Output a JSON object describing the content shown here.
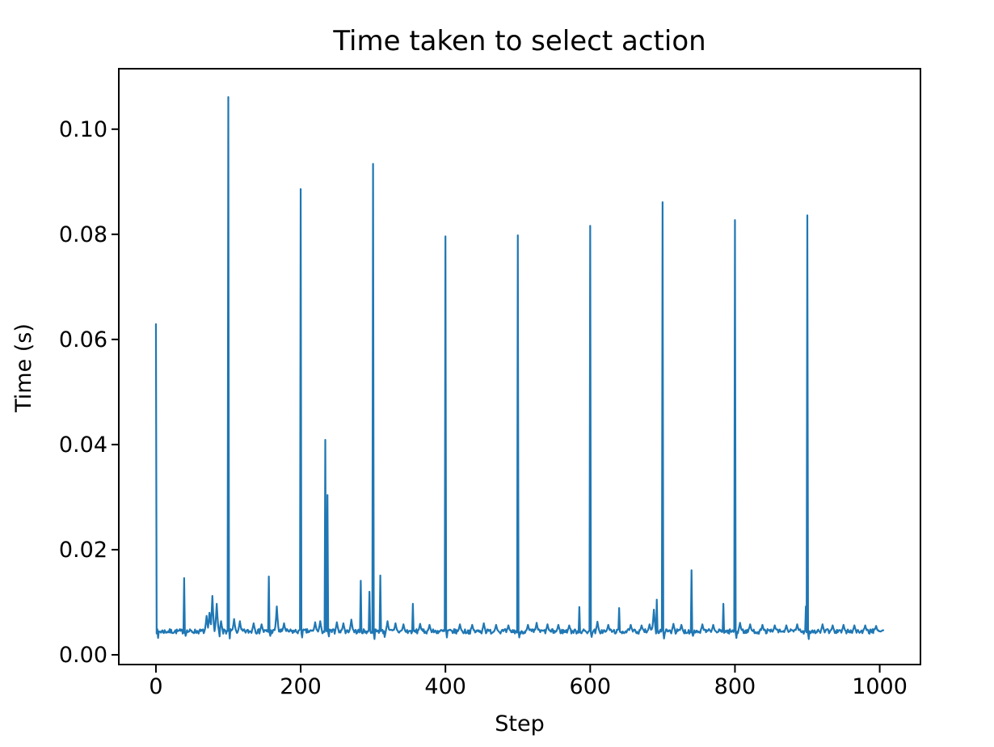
{
  "page": {
    "background": "#ffffff"
  },
  "chart_data": {
    "type": "line",
    "title": "Time taken to select action",
    "xlabel": "Step",
    "ylabel": "Time (s)",
    "series_color": "#1f77b4",
    "axis_color": "#000000",
    "grid": false,
    "legend": null,
    "x_ticks": [
      0,
      200,
      400,
      600,
      800,
      1000
    ],
    "y_ticks": [
      {
        "value": 0.0,
        "label": "0.00"
      },
      {
        "value": 0.02,
        "label": "0.02"
      },
      {
        "value": 0.04,
        "label": "0.04"
      },
      {
        "value": 0.06,
        "label": "0.06"
      },
      {
        "value": 0.08,
        "label": "0.08"
      },
      {
        "value": 0.1,
        "label": "0.10"
      }
    ],
    "xlim": [
      -51.3,
      1056.3
    ],
    "ylim": [
      -0.00185,
      0.1115
    ],
    "n_points": 1006,
    "baseline": {
      "mean": 0.00445,
      "noise": 0.0009,
      "seed": 7
    },
    "spikes": [
      [
        0,
        0.0629
      ],
      [
        39,
        0.0146
      ],
      [
        100,
        0.1061
      ],
      [
        156,
        0.0149
      ],
      [
        200,
        0.0886
      ],
      [
        234,
        0.0409
      ],
      [
        237,
        0.0304
      ],
      [
        283,
        0.0141
      ],
      [
        295,
        0.012
      ],
      [
        300,
        0.0934
      ],
      [
        310,
        0.0151
      ],
      [
        355,
        0.0097
      ],
      [
        400,
        0.0796
      ],
      [
        500,
        0.0798
      ],
      [
        585,
        0.0091
      ],
      [
        600,
        0.0816
      ],
      [
        640,
        0.0089
      ],
      [
        692,
        0.0105
      ],
      [
        700,
        0.0861
      ],
      [
        740,
        0.0161
      ],
      [
        784,
        0.0097
      ],
      [
        800,
        0.0827
      ],
      [
        898,
        0.0092
      ],
      [
        900,
        0.0836
      ]
    ],
    "small_bumps": [
      [
        70,
        0.0074
      ],
      [
        74,
        0.008
      ],
      [
        78,
        0.0112
      ],
      [
        84,
        0.0097
      ],
      [
        90,
        0.0064
      ],
      [
        108,
        0.0068
      ],
      [
        116,
        0.0064
      ],
      [
        135,
        0.006
      ],
      [
        146,
        0.0058
      ],
      [
        167,
        0.0092
      ],
      [
        177,
        0.006
      ],
      [
        220,
        0.0062
      ],
      [
        227,
        0.0064
      ],
      [
        250,
        0.0062
      ],
      [
        259,
        0.006
      ],
      [
        270,
        0.0067
      ],
      [
        320,
        0.0064
      ],
      [
        331,
        0.006
      ],
      [
        342,
        0.0058
      ],
      [
        365,
        0.0059
      ],
      [
        378,
        0.0057
      ],
      [
        420,
        0.0058
      ],
      [
        437,
        0.0057
      ],
      [
        453,
        0.006
      ],
      [
        470,
        0.0057
      ],
      [
        487,
        0.0056
      ],
      [
        514,
        0.0057
      ],
      [
        526,
        0.0061
      ],
      [
        541,
        0.0058
      ],
      [
        556,
        0.0057
      ],
      [
        571,
        0.0056
      ],
      [
        610,
        0.0063
      ],
      [
        625,
        0.0057
      ],
      [
        656,
        0.0057
      ],
      [
        671,
        0.0056
      ],
      [
        682,
        0.0058
      ],
      [
        688,
        0.0086
      ],
      [
        715,
        0.0059
      ],
      [
        726,
        0.0057
      ],
      [
        755,
        0.0058
      ],
      [
        770,
        0.0057
      ],
      [
        807,
        0.0061
      ],
      [
        821,
        0.0058
      ],
      [
        838,
        0.0057
      ],
      [
        855,
        0.0056
      ],
      [
        871,
        0.0056
      ],
      [
        886,
        0.0058
      ],
      [
        921,
        0.0058
      ],
      [
        935,
        0.0056
      ],
      [
        950,
        0.0057
      ],
      [
        965,
        0.0056
      ],
      [
        980,
        0.0056
      ],
      [
        995,
        0.0055
      ]
    ],
    "dips": [
      [
        3,
        0.0032
      ],
      [
        41,
        0.0036
      ],
      [
        88,
        0.0035
      ],
      [
        102,
        0.0031
      ],
      [
        158,
        0.0036
      ],
      [
        202,
        0.0033
      ],
      [
        239,
        0.0035
      ],
      [
        302,
        0.003
      ],
      [
        316,
        0.0034
      ],
      [
        402,
        0.0033
      ],
      [
        502,
        0.0033
      ],
      [
        602,
        0.0034
      ],
      [
        702,
        0.0031
      ],
      [
        742,
        0.0036
      ],
      [
        802,
        0.0032
      ],
      [
        902,
        0.003
      ]
    ]
  }
}
